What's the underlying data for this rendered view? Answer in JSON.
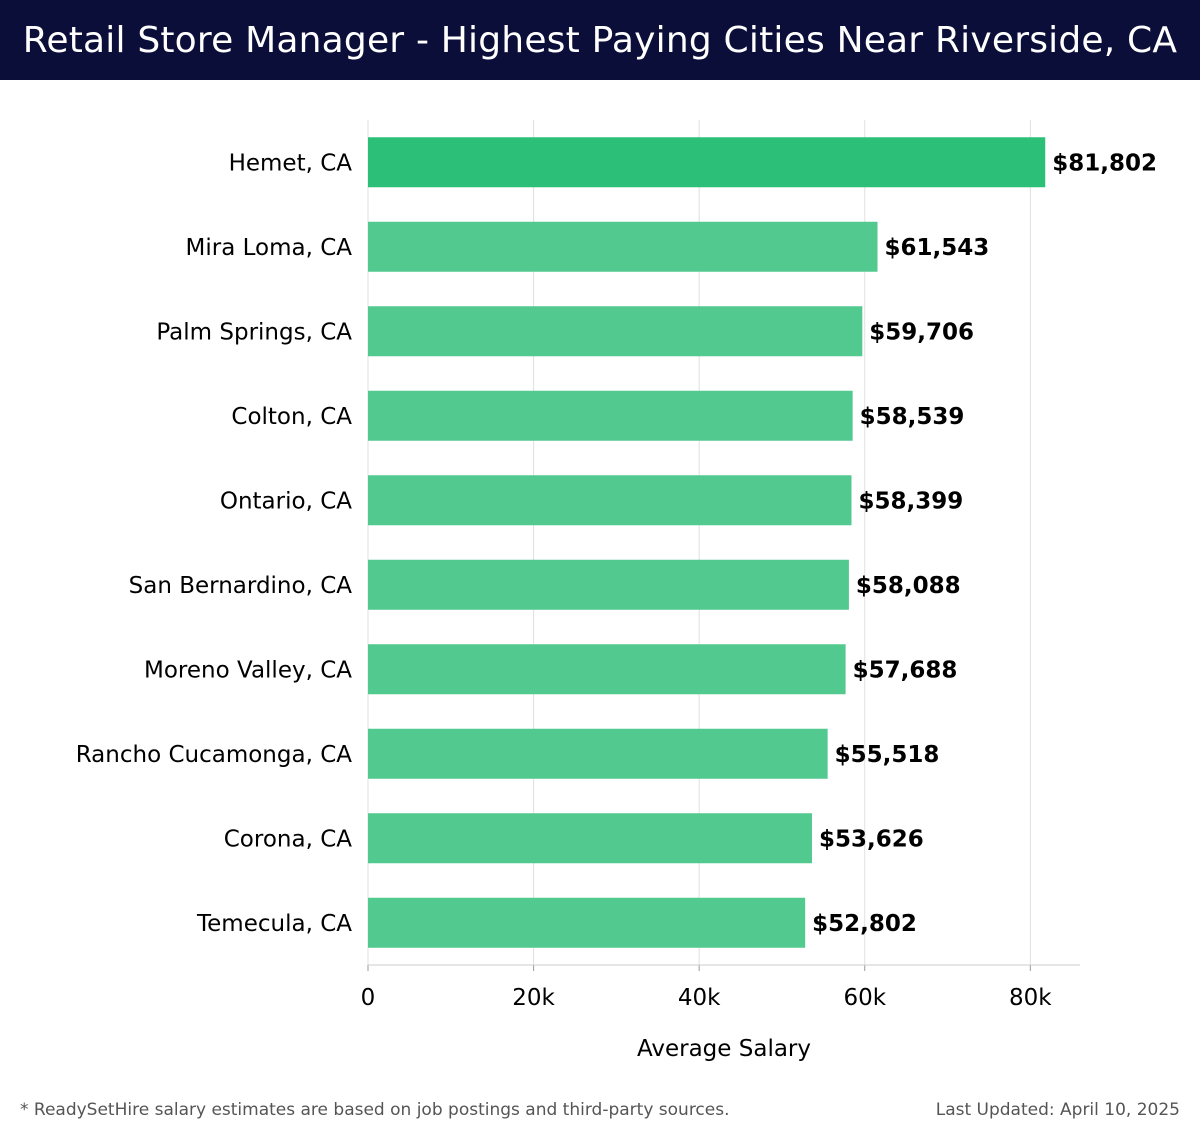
{
  "header": {
    "title": "Retail Store Manager - Highest Paying Cities Near Riverside, CA"
  },
  "footer": {
    "note": "* ReadySetHire salary estimates are based on job postings and third-party sources.",
    "updated": "Last Updated: April 10, 2025"
  },
  "colors": {
    "header_bg": "#0c0e3a",
    "top_bar": "#2bbf78",
    "bar": "#52c98f",
    "grid": "#e0e0e0",
    "text": "#000000"
  },
  "chart_data": {
    "type": "bar",
    "orientation": "horizontal",
    "title": "Retail Store Manager - Highest Paying Cities Near Riverside, CA",
    "xlabel": "Average Salary",
    "ylabel": "",
    "xlim": [
      0,
      86000
    ],
    "x_ticks": [
      0,
      20000,
      40000,
      60000,
      80000
    ],
    "x_tick_labels": [
      "0",
      "20k",
      "40k",
      "60k",
      "80k"
    ],
    "grid": true,
    "legend": "none",
    "categories": [
      "Hemet, CA",
      "Mira Loma, CA",
      "Palm Springs, CA",
      "Colton, CA",
      "Ontario, CA",
      "San Bernardino, CA",
      "Moreno Valley, CA",
      "Rancho Cucamonga, CA",
      "Corona, CA",
      "Temecula, CA"
    ],
    "values": [
      81802,
      61543,
      59706,
      58539,
      58399,
      58088,
      57688,
      55518,
      53626,
      52802
    ],
    "value_labels": [
      "$81,802",
      "$61,543",
      "$59,706",
      "$58,539",
      "$58,399",
      "$58,088",
      "$57,688",
      "$55,518",
      "$53,626",
      "$52,802"
    ]
  }
}
